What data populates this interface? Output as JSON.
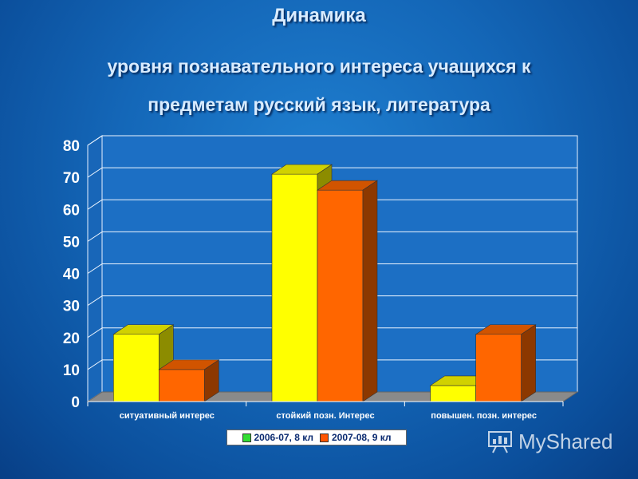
{
  "header": {
    "title_line1": "Динамика",
    "title_line2": "уровня познавательного интереса учащихся к",
    "title_line3": "предметам русский язык, литература"
  },
  "chart_data": {
    "type": "bar",
    "categories": [
      "ситуативный интерес",
      "стойкий позн. Интерес",
      "повышен. позн. интерес"
    ],
    "series": [
      {
        "name": "2006-07, 8 кл",
        "values": [
          21,
          71,
          5
        ],
        "color": "#ffff00",
        "legend_color": "#33dd33"
      },
      {
        "name": "2007-08, 9 кл",
        "values": [
          10,
          66,
          21
        ],
        "color": "#ff6600",
        "legend_color": "#ff5500"
      }
    ],
    "ylim": [
      0,
      80
    ],
    "yticks": [
      0,
      10,
      20,
      30,
      40,
      50,
      60,
      70,
      80
    ],
    "grid": true,
    "legend_position": "bottom"
  },
  "legend": {
    "item1": "2006-07, 8 кл",
    "item2": "2007-08, 9 кл"
  },
  "watermark": {
    "text": "MyShared"
  }
}
